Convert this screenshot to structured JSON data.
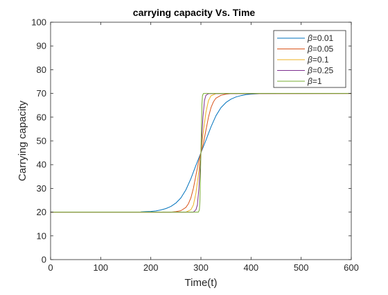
{
  "chart_data": {
    "type": "line",
    "title": "carrying capacity Vs. Time",
    "xlabel": "Time(t)",
    "ylabel": "Carrying capacity",
    "xlim": [
      0,
      600
    ],
    "ylim": [
      0,
      100
    ],
    "xticks": [
      "0",
      "100",
      "200",
      "300",
      "400",
      "500",
      "600"
    ],
    "yticks": [
      "0",
      "10",
      "20",
      "30",
      "40",
      "50",
      "60",
      "70",
      "80",
      "90",
      "100"
    ],
    "grid": false,
    "legend_position": "top-right",
    "legend_symbol": "β",
    "series": [
      {
        "name": "=0.01",
        "color": "#0072BD",
        "x": [
          180,
          190,
          200,
          210,
          220,
          230,
          240,
          250,
          260,
          270,
          280,
          290,
          300,
          310,
          320,
          330,
          340,
          350,
          360,
          370,
          380,
          390,
          400,
          410,
          420,
          430,
          440,
          450
        ],
        "y": [
          20.1,
          20.2,
          20.3,
          20.5,
          20.9,
          21.5,
          22.4,
          23.8,
          26.0,
          29.4,
          34.1,
          39.7,
          45.0,
          50.3,
          55.9,
          60.6,
          64.0,
          66.2,
          67.6,
          68.5,
          69.1,
          69.5,
          69.7,
          69.8,
          69.9,
          69.95,
          70.0,
          70.0
        ]
      },
      {
        "name": "=0.05",
        "color": "#D95319",
        "x": [
          0,
          240,
          250,
          260,
          270,
          275,
          280,
          285,
          290,
          295,
          300,
          305,
          310,
          315,
          320,
          325,
          330,
          340,
          350,
          360,
          600
        ],
        "y": [
          20,
          20.0,
          20.2,
          20.6,
          22.0,
          23.5,
          26.0,
          30.0,
          35.5,
          41.0,
          45.0,
          49.0,
          54.5,
          60.0,
          64.0,
          66.5,
          68.0,
          69.2,
          69.7,
          69.9,
          70
        ]
      },
      {
        "name": "=0.1",
        "color": "#EDB120",
        "x": [
          0,
          270,
          280,
          285,
          290,
          295,
          300,
          305,
          310,
          315,
          320,
          330,
          600
        ],
        "y": [
          20,
          20.0,
          21.0,
          23.0,
          28.0,
          36.0,
          45.0,
          54.0,
          62.0,
          67.0,
          69.0,
          69.9,
          70
        ]
      },
      {
        "name": "=0.25",
        "color": "#7E2F8E",
        "x": [
          0,
          285,
          290,
          293,
          296,
          298,
          300,
          302,
          304,
          307,
          310,
          315,
          600
        ],
        "y": [
          20,
          20.0,
          21.0,
          23.0,
          30.0,
          38.0,
          45.0,
          52.0,
          60.0,
          67.0,
          69.2,
          69.9,
          70
        ]
      },
      {
        "name": "=1",
        "color": "#77AC30",
        "x": [
          0,
          295,
          297,
          298,
          299,
          300,
          301,
          302,
          303,
          305,
          600
        ],
        "y": [
          20,
          20.0,
          21.0,
          25.0,
          35.0,
          45.0,
          55.0,
          65.0,
          69.0,
          70.0,
          70
        ]
      }
    ]
  }
}
